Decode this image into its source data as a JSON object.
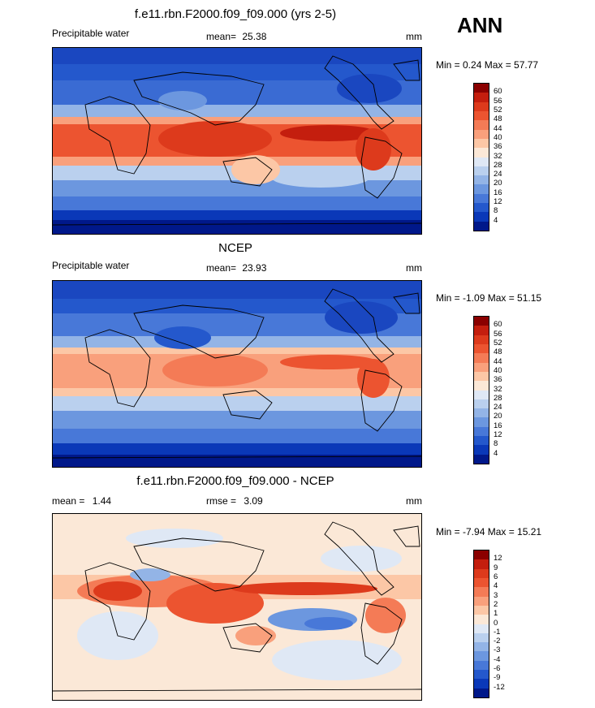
{
  "season": "ANN",
  "units": "mm",
  "panels": [
    {
      "title": "f.e11.rbn.F2000.f09_f09.000 (yrs 2-5)",
      "variable": "Precipitable water",
      "mean_label": "mean=",
      "mean_value": "25.38",
      "units": "mm",
      "minmax": "Min =   0.24 Max =  57.77"
    },
    {
      "title": "NCEP",
      "variable": "Precipitable water",
      "mean_label": "mean=",
      "mean_value": "23.93",
      "units": "mm",
      "minmax": "Min =  -1.09 Max =  51.15"
    },
    {
      "title": "f.e11.rbn.F2000.f09_f09.000 - NCEP",
      "mean_label": "mean =",
      "mean_value": "1.44",
      "rmse_label": "rmse =",
      "rmse_value": "3.09",
      "units": "mm",
      "minmax": "Min =  -7.94 Max =  15.21"
    }
  ],
  "chart_data": [
    {
      "type": "heatmap",
      "title": "f.e11.rbn.F2000.f09_f09.000 (yrs 2-5)",
      "subtitle": "Precipitable water",
      "mean": 25.38,
      "min": 0.24,
      "max": 57.77,
      "units": "mm",
      "colorbar_levels": [
        4,
        8,
        12,
        16,
        20,
        24,
        28,
        32,
        36,
        40,
        44,
        48,
        52,
        56,
        60
      ]
    },
    {
      "type": "heatmap",
      "title": "NCEP",
      "subtitle": "Precipitable water",
      "mean": 23.93,
      "min": -1.09,
      "max": 51.15,
      "units": "mm",
      "colorbar_levels": [
        4,
        8,
        12,
        16,
        20,
        24,
        28,
        32,
        36,
        40,
        44,
        48,
        52,
        56,
        60
      ]
    },
    {
      "type": "heatmap",
      "title": "f.e11.rbn.F2000.f09_f09.000 - NCEP",
      "mean": 1.44,
      "rmse": 3.09,
      "min": -7.94,
      "max": 15.21,
      "units": "mm",
      "colorbar_levels": [
        -12,
        -9,
        -6,
        -4,
        -3,
        -2,
        -1,
        0,
        1,
        2,
        3,
        4,
        6,
        9,
        12
      ]
    }
  ],
  "colorbar_labels": {
    "abs": [
      "60",
      "56",
      "52",
      "48",
      "44",
      "40",
      "36",
      "32",
      "28",
      "24",
      "20",
      "16",
      "12",
      "8",
      "4"
    ],
    "diff": [
      "12",
      "9",
      "6",
      "4",
      "3",
      "2",
      "1",
      "0",
      "-1",
      "-2",
      "-3",
      "-4",
      "-6",
      "-9",
      "-12"
    ]
  },
  "colors": {
    "abs": [
      "#8b0000",
      "#c41e0e",
      "#dd3a1c",
      "#ec5430",
      "#f47b56",
      "#f9a07c",
      "#fcc7a6",
      "#fbe8d7",
      "#dfe8f5",
      "#bad0ee",
      "#93b4e6",
      "#6c97df",
      "#4878d8",
      "#2458cc",
      "#0a38b8",
      "#00188a"
    ],
    "diff": [
      "#8b0000",
      "#c41e0e",
      "#dd3a1c",
      "#ec5430",
      "#f47b56",
      "#f9a07c",
      "#fcc7a6",
      "#fbe8d7",
      "#dfe8f5",
      "#bad0ee",
      "#93b4e6",
      "#6c97df",
      "#4878d8",
      "#2458cc",
      "#0a38b8",
      "#00188a"
    ]
  }
}
